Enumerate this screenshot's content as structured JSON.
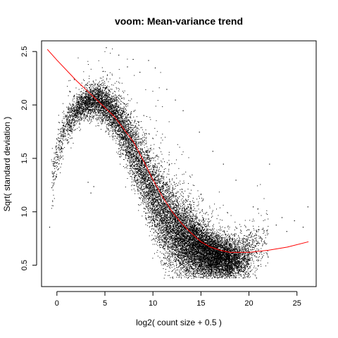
{
  "chart_data": {
    "type": "scatter",
    "title": "voom: Mean-variance trend",
    "xlabel": "log2( count size + 0.5 )",
    "ylabel": "Sqrt( standard deviation )",
    "xlim": [
      -1.6,
      27.0
    ],
    "ylim": [
      0.3,
      2.6
    ],
    "x_ticks": [
      0,
      5,
      10,
      15,
      20,
      25
    ],
    "y_ticks": [
      0.5,
      1.0,
      1.5,
      2.0,
      2.5
    ],
    "x_tick_labels": [
      "0",
      "5",
      "10",
      "15",
      "20",
      "25"
    ],
    "y_tick_labels": [
      "0.5",
      "1.0",
      "1.5",
      "2.0",
      "2.5"
    ],
    "point_color": "#000000",
    "trend_color": "#ff0000",
    "grid": false,
    "legend": "none",
    "density_profile": {
      "x": [
        -0.6,
        0.0,
        1.0,
        2.0,
        3.0,
        4.0,
        5.0,
        6.0,
        7.0,
        8.0,
        9.0,
        10.0,
        11.0,
        12.0,
        13.0,
        14.0,
        15.0,
        16.0,
        17.0,
        18.0,
        19.0,
        20.0,
        21.0,
        22.0
      ],
      "center": [
        1.25,
        1.55,
        1.8,
        1.95,
        2.02,
        2.05,
        2.0,
        1.9,
        1.75,
        1.55,
        1.35,
        1.15,
        0.98,
        0.85,
        0.76,
        0.7,
        0.65,
        0.6,
        0.57,
        0.55,
        0.56,
        0.6,
        0.68,
        0.75
      ],
      "spread": [
        0.12,
        0.1,
        0.08,
        0.07,
        0.07,
        0.08,
        0.09,
        0.11,
        0.13,
        0.15,
        0.17,
        0.19,
        0.2,
        0.19,
        0.17,
        0.15,
        0.13,
        0.11,
        0.1,
        0.09,
        0.1,
        0.12,
        0.14,
        0.15
      ],
      "weight": [
        2,
        5,
        10,
        16,
        22,
        26,
        26,
        26,
        26,
        26,
        28,
        32,
        36,
        42,
        48,
        55,
        60,
        58,
        52,
        40,
        24,
        10,
        4,
        2
      ]
    },
    "outliers": {
      "x": [
        -0.8,
        3.2,
        3.8,
        5.1,
        6.4,
        7.3,
        7.9,
        8.6,
        9.5,
        10.2,
        11.4,
        12.3,
        13.1,
        14.8,
        17.3,
        18.6,
        20.4,
        22.1,
        22.8,
        23.4,
        23.9,
        24.7,
        25.6,
        26.1,
        3.5,
        16.2
      ],
      "y": [
        0.86,
        1.28,
        1.24,
        2.54,
        2.47,
        2.36,
        2.43,
        2.31,
        2.42,
        2.35,
        2.15,
        2.05,
        1.95,
        1.75,
        1.45,
        1.3,
        1.05,
        1.45,
        0.88,
        0.95,
        0.82,
        0.92,
        0.86,
        1.05,
        1.18,
        1.57
      ]
    },
    "trend": {
      "x": [
        -1.0,
        0.0,
        2.0,
        4.0,
        6.0,
        8.0,
        9.0,
        10.0,
        11.0,
        12.0,
        13.0,
        14.0,
        15.0,
        16.0,
        17.0,
        18.0,
        20.0,
        22.0,
        24.0,
        26.2
      ],
      "y": [
        2.52,
        2.42,
        2.23,
        2.06,
        1.89,
        1.65,
        1.48,
        1.3,
        1.14,
        1.0,
        0.89,
        0.8,
        0.72,
        0.67,
        0.64,
        0.62,
        0.62,
        0.64,
        0.67,
        0.72
      ]
    },
    "seed": 1337
  }
}
